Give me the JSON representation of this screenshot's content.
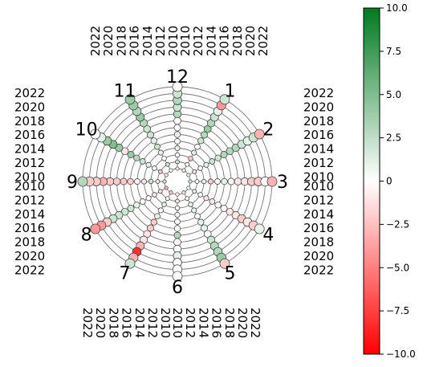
{
  "chart_data": {
    "type": "scatter",
    "layout": "clock-radial",
    "hours": [
      "12",
      "1",
      "2",
      "3",
      "4",
      "5",
      "6",
      "7",
      "8",
      "9",
      "10",
      "11"
    ],
    "years": [
      2010,
      2011,
      2012,
      2013,
      2014,
      2015,
      2016,
      2017,
      2018,
      2019,
      2020,
      2021,
      2022
    ],
    "year_labels": [
      "2010",
      "2012",
      "2014",
      "2016",
      "2018",
      "2020",
      "2022"
    ],
    "colorbar": {
      "min": -10,
      "max": 10,
      "colors": [
        "#ff0000",
        "#ffffff",
        "#007a1f"
      ],
      "ticks": [
        "10.0",
        "7.5",
        "5.0",
        "2.5",
        "0",
        "−2.5",
        "−5.0",
        "−7.5",
        "−10.0"
      ]
    },
    "values": [
      [
        -1,
        2,
        0,
        1,
        0,
        1,
        0,
        0,
        3,
        2,
        3,
        2,
        0
      ],
      [
        1,
        0,
        -2,
        1,
        0,
        2,
        3,
        4,
        3,
        2,
        1,
        -4,
        2
      ],
      [
        1,
        -1,
        0,
        1,
        2,
        2,
        3,
        3,
        3,
        2,
        1,
        2,
        -3
      ],
      [
        2,
        0,
        1,
        -2,
        0,
        1,
        0,
        -1,
        -1,
        -2,
        -2,
        0,
        -3
      ],
      [
        0,
        1,
        0,
        -1,
        -1,
        0,
        0,
        -1,
        -1,
        -2,
        -1,
        -2,
        1
      ],
      [
        -1,
        0,
        1,
        1,
        0,
        1,
        1,
        0,
        2,
        3,
        3,
        4,
        -2
      ],
      [
        0,
        -1,
        0,
        0,
        0,
        0,
        3,
        0,
        0,
        1,
        0,
        0,
        0
      ],
      [
        -2,
        0,
        1,
        0,
        1,
        -2,
        -2,
        -1,
        -1,
        -3,
        -8,
        -3,
        2
      ],
      [
        -3,
        -1,
        -1,
        0,
        0,
        1,
        2,
        2,
        2,
        2,
        -2,
        -4,
        -4
      ],
      [
        2,
        -1,
        2,
        -1,
        0,
        -2,
        -2,
        -2,
        -2,
        -3,
        -2,
        -2,
        3
      ],
      [
        -1,
        -2,
        0,
        1,
        2,
        3,
        4,
        -1,
        4,
        5,
        4,
        1,
        0
      ],
      [
        0,
        2,
        0,
        1,
        2,
        1,
        2,
        2,
        3,
        4,
        3,
        4,
        4
      ]
    ]
  }
}
